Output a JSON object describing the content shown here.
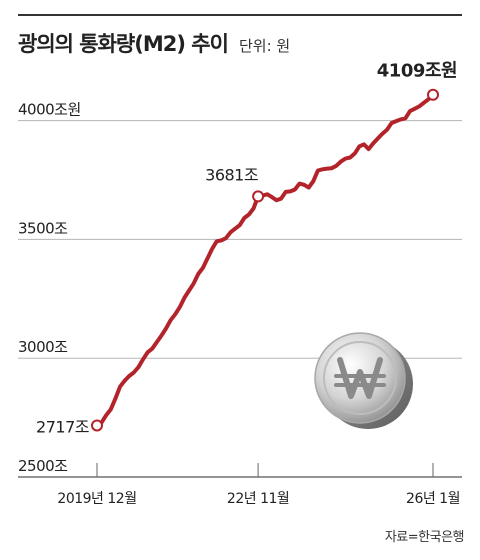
{
  "title": "광의의 통화량(M2) 추이",
  "unit_label": "단위: 원",
  "source": "자료=한국은행",
  "colors": {
    "line": "#b3242a",
    "grid": "#b5b5b5",
    "text": "#222222"
  },
  "chart_data": {
    "type": "line",
    "x": [
      "2019-12",
      "2020-01",
      "2020-02",
      "2020-03",
      "2020-04",
      "2020-05",
      "2020-06",
      "2020-07",
      "2020-08",
      "2020-09",
      "2020-10",
      "2020-11",
      "2020-12",
      "2021-01",
      "2021-02",
      "2021-03",
      "2021-04",
      "2021-05",
      "2021-06",
      "2021-07",
      "2021-08",
      "2021-09",
      "2021-10",
      "2021-11",
      "2021-12",
      "2022-01",
      "2022-02",
      "2022-03",
      "2022-04",
      "2022-05",
      "2022-06",
      "2022-07",
      "2022-08",
      "2022-09",
      "2022-10",
      "2022-11",
      "2022-12",
      "2023-01",
      "2023-02",
      "2023-03",
      "2023-04",
      "2023-05",
      "2023-06",
      "2023-07",
      "2023-08",
      "2023-09",
      "2023-10",
      "2023-11",
      "2023-12",
      "2024-01",
      "2024-02",
      "2024-03",
      "2024-04",
      "2024-05",
      "2024-06",
      "2024-07",
      "2024-08",
      "2024-09",
      "2024-10",
      "2024-11",
      "2024-12",
      "2025-01",
      "2025-02",
      "2025-03",
      "2025-04",
      "2025-05",
      "2025-06",
      "2025-07",
      "2025-08",
      "2025-09",
      "2025-10",
      "2025-11",
      "2025-12",
      "2026-01"
    ],
    "values": [
      2717,
      2730,
      2760,
      2785,
      2830,
      2880,
      2905,
      2925,
      2940,
      2962,
      2995,
      3025,
      3040,
      3068,
      3095,
      3125,
      3160,
      3185,
      3215,
      3255,
      3285,
      3315,
      3355,
      3380,
      3420,
      3460,
      3492,
      3496,
      3505,
      3530,
      3545,
      3560,
      3590,
      3605,
      3630,
      3681,
      3685,
      3690,
      3678,
      3665,
      3672,
      3700,
      3702,
      3710,
      3735,
      3730,
      3718,
      3745,
      3790,
      3795,
      3798,
      3800,
      3810,
      3828,
      3840,
      3845,
      3862,
      3892,
      3900,
      3880,
      3904,
      3925,
      3945,
      3962,
      3990,
      3998,
      4005,
      4010,
      4040,
      4050,
      4060,
      4075,
      4090,
      4109
    ],
    "ylim": [
      2500,
      4150
    ],
    "yticks": [
      {
        "value": 2500,
        "label": "2500조"
      },
      {
        "value": 3000,
        "label": "3000조"
      },
      {
        "value": 3500,
        "label": "3500조"
      },
      {
        "value": 4000,
        "label": "4000조원"
      }
    ],
    "xticks": [
      {
        "x": "2019-12",
        "label": "2019년 12월"
      },
      {
        "x": "2022-11",
        "label": "22년 11월"
      },
      {
        "x": "2026-01",
        "label": "26년 1월"
      }
    ],
    "annotations": [
      {
        "x": "2019-12",
        "value": 2717,
        "label": "2717조"
      },
      {
        "x": "2022-11",
        "value": 3681,
        "label": "3681조"
      },
      {
        "x": "2026-01",
        "value": 4109,
        "label": "4109조원"
      }
    ],
    "grid": true
  }
}
